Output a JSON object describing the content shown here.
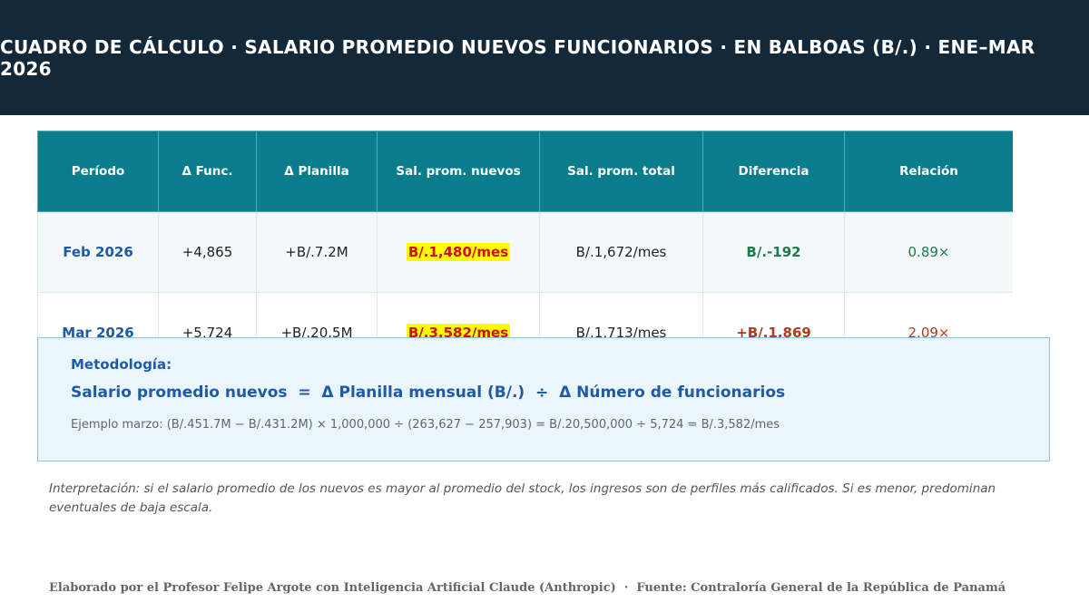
{
  "header": {
    "title": "CUADRO DE CÁLCULO · SALARIO PROMEDIO NUEVOS FUNCIONARIOS · EN BALBOAS (B/.) · ENE–MAR 2026"
  },
  "table": {
    "columns": [
      "Período",
      "Δ Func.",
      "Δ Planilla",
      "Sal. prom. nuevos",
      "Sal. prom. total",
      "Diferencia",
      "Relación"
    ],
    "rows": [
      {
        "periodo": "Feb 2026",
        "func": "+4,865",
        "planilla": "+B/.7.2M",
        "sal_nuevos": "B/.1,480/mes",
        "sal_total": "B/.1,672/mes",
        "diferencia": "B/.-192",
        "relacion": "0.89×"
      },
      {
        "periodo": "Mar 2026",
        "func": "+5,724",
        "planilla": "+B/.20.5M",
        "sal_nuevos": "B/.3,582/mes",
        "sal_total": "B/.1,713/mes",
        "diferencia": "+B/.1,869",
        "relacion": "2.09×"
      }
    ]
  },
  "methodology": {
    "title": "Metodología:",
    "formula": "Salario promedio nuevos  =  Δ Planilla mensual (B/.)  ÷  Δ Número de funcionarios",
    "example": "Ejemplo marzo: (B/.451.7M − B/.431.2M) × 1,000,000 ÷ (263,627 − 257,903) = B/.20,500,000 ÷ 5,724 = B/.3,582/mes"
  },
  "interpretation": "Interpretación: si el salario promedio de los nuevos es mayor al promedio del stock, los ingresos son de perfiles más calificados. Si es menor, predominan eventuales de baja escala.",
  "footer": "Elaborado por el Profesor Felipe Argote con Inteligencia Artificial Claude (Anthropic)  ·  Fuente: Contraloría General de la República de Panamá",
  "colors": {
    "header_bg": "#13293a",
    "table_header_bg": "#0a7d8c",
    "highlight": "#ffff00",
    "highlight_text": "#d01010",
    "positive": "#1e7a4a",
    "negative": "#b03a1a",
    "accent_blue": "#1e5aa8"
  }
}
